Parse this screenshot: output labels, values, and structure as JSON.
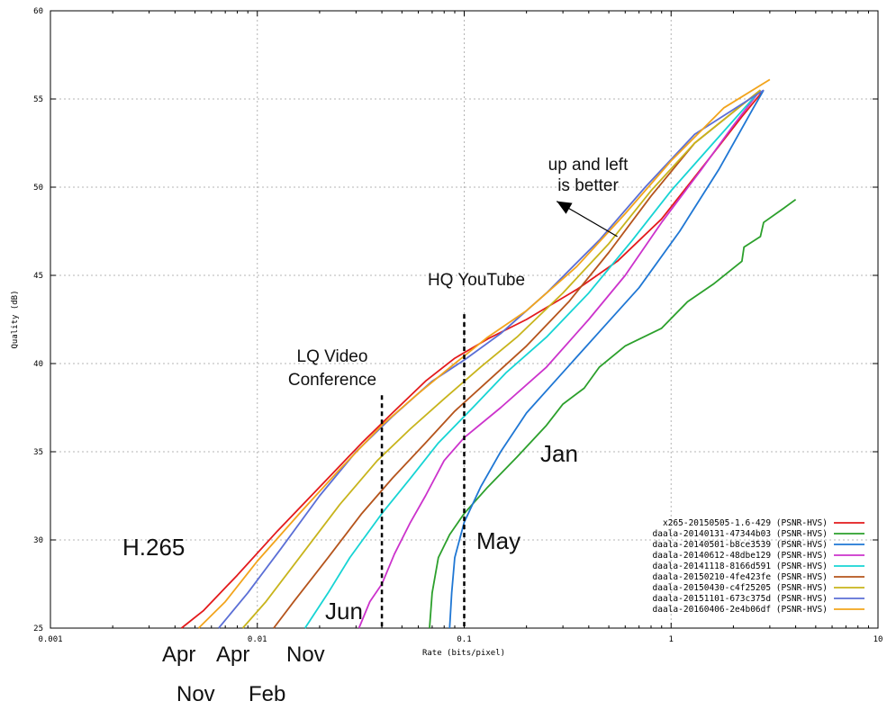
{
  "chart_data": {
    "type": "line",
    "xlabel": "Rate (bits/pixel)",
    "ylabel": "Quality (dB)",
    "x_scale": "log",
    "xlim": [
      0.001,
      10
    ],
    "ylim": [
      25,
      60
    ],
    "x_ticks": [
      "0.001",
      "0.01",
      "0.1",
      "1",
      "10"
    ],
    "y_ticks": [
      "25",
      "30",
      "35",
      "40",
      "45",
      "50",
      "55",
      "60"
    ],
    "grid": true,
    "legend_position": "bottom-right",
    "series": [
      {
        "name": "x265-20150505-1.6-429 (PSNR-HVS)",
        "color": "#e31a1c",
        "points": [
          [
            0.0043,
            25
          ],
          [
            0.0055,
            26
          ],
          [
            0.008,
            28
          ],
          [
            0.0125,
            30.5
          ],
          [
            0.02,
            33
          ],
          [
            0.032,
            35.5
          ],
          [
            0.045,
            37.2
          ],
          [
            0.065,
            39
          ],
          [
            0.09,
            40.3
          ],
          [
            0.13,
            41.4
          ],
          [
            0.2,
            42.5
          ],
          [
            0.35,
            44.2
          ],
          [
            0.55,
            45.8
          ],
          [
            0.9,
            48.2
          ],
          [
            1.5,
            51.5
          ],
          [
            2.2,
            54
          ],
          [
            2.8,
            55.5
          ]
        ]
      },
      {
        "name": "daala-20140131-47344b03 (PSNR-HVS)",
        "color": "#2ca02c",
        "points": [
          [
            0.068,
            25
          ],
          [
            0.07,
            27
          ],
          [
            0.075,
            29
          ],
          [
            0.085,
            30.3
          ],
          [
            0.1,
            31.5
          ],
          [
            0.13,
            33
          ],
          [
            0.18,
            34.7
          ],
          [
            0.25,
            36.5
          ],
          [
            0.3,
            37.7
          ],
          [
            0.38,
            38.6
          ],
          [
            0.45,
            39.8
          ],
          [
            0.6,
            41
          ],
          [
            0.9,
            42
          ],
          [
            1.2,
            43.5
          ],
          [
            1.6,
            44.5
          ],
          [
            2.2,
            45.8
          ],
          [
            2.25,
            46.6
          ],
          [
            2.7,
            47.2
          ],
          [
            2.8,
            48
          ],
          [
            3.5,
            48.8
          ],
          [
            4,
            49.3
          ]
        ]
      },
      {
        "name": "daala-20140501-b8ce3539 (PSNR-HVS)",
        "color": "#1f77d4",
        "points": [
          [
            0.085,
            25
          ],
          [
            0.087,
            27
          ],
          [
            0.09,
            29
          ],
          [
            0.1,
            31
          ],
          [
            0.12,
            33
          ],
          [
            0.15,
            35
          ],
          [
            0.2,
            37.2
          ],
          [
            0.3,
            39.5
          ],
          [
            0.45,
            41.8
          ],
          [
            0.7,
            44.3
          ],
          [
            1.1,
            47.5
          ],
          [
            1.7,
            51
          ],
          [
            2.5,
            54.5
          ],
          [
            2.8,
            55.5
          ]
        ]
      },
      {
        "name": "daala-20140612-48dbe129 (PSNR-HVS)",
        "color": "#cc33cc",
        "points": [
          [
            0.031,
            25
          ],
          [
            0.035,
            26.5
          ],
          [
            0.04,
            27.5
          ],
          [
            0.046,
            29.2
          ],
          [
            0.055,
            31
          ],
          [
            0.065,
            32.5
          ],
          [
            0.08,
            34.5
          ],
          [
            0.1,
            35.8
          ],
          [
            0.15,
            37.5
          ],
          [
            0.25,
            39.8
          ],
          [
            0.4,
            42.5
          ],
          [
            0.6,
            45
          ],
          [
            0.9,
            48
          ],
          [
            1.4,
            51
          ],
          [
            2,
            53.5
          ],
          [
            2.7,
            55.5
          ]
        ]
      },
      {
        "name": "daala-20141118-8166d591 (PSNR-HVS)",
        "color": "#17d4d4",
        "points": [
          [
            0.017,
            25
          ],
          [
            0.022,
            27
          ],
          [
            0.028,
            29
          ],
          [
            0.04,
            31.5
          ],
          [
            0.055,
            33.5
          ],
          [
            0.075,
            35.5
          ],
          [
            0.11,
            37.5
          ],
          [
            0.16,
            39.5
          ],
          [
            0.25,
            41.5
          ],
          [
            0.4,
            44
          ],
          [
            0.65,
            47
          ],
          [
            1,
            49.8
          ],
          [
            1.6,
            52.5
          ],
          [
            2.7,
            55.5
          ]
        ]
      },
      {
        "name": "daala-20150210-4fe423fe (PSNR-HVS)",
        "color": "#b5541c",
        "points": [
          [
            0.012,
            25
          ],
          [
            0.015,
            26.5
          ],
          [
            0.022,
            29
          ],
          [
            0.032,
            31.5
          ],
          [
            0.045,
            33.5
          ],
          [
            0.065,
            35.5
          ],
          [
            0.09,
            37.3
          ],
          [
            0.13,
            39
          ],
          [
            0.2,
            41
          ],
          [
            0.32,
            43.5
          ],
          [
            0.5,
            46.3
          ],
          [
            0.8,
            49.5
          ],
          [
            1.3,
            52.5
          ],
          [
            2.7,
            55.5
          ]
        ]
      },
      {
        "name": "daala-20150430-c4f25205 (PSNR-HVS)",
        "color": "#c8b41c",
        "points": [
          [
            0.0085,
            25
          ],
          [
            0.011,
            26.5
          ],
          [
            0.016,
            29
          ],
          [
            0.025,
            32
          ],
          [
            0.038,
            34.5
          ],
          [
            0.055,
            36.3
          ],
          [
            0.08,
            38
          ],
          [
            0.12,
            39.8
          ],
          [
            0.18,
            41.5
          ],
          [
            0.3,
            44
          ],
          [
            0.5,
            46.8
          ],
          [
            0.8,
            49.8
          ],
          [
            1.3,
            52.5
          ],
          [
            2.7,
            55.5
          ]
        ]
      },
      {
        "name": "daala-20151101-673c375d (PSNR-HVS)",
        "color": "#5b6fd6",
        "points": [
          [
            0.0065,
            25
          ],
          [
            0.009,
            27
          ],
          [
            0.013,
            29.5
          ],
          [
            0.02,
            32.5
          ],
          [
            0.03,
            35
          ],
          [
            0.045,
            37
          ],
          [
            0.07,
            39
          ],
          [
            0.1,
            40.2
          ],
          [
            0.15,
            41.7
          ],
          [
            0.25,
            44
          ],
          [
            0.45,
            47
          ],
          [
            0.75,
            50
          ],
          [
            1.3,
            53
          ],
          [
            2.8,
            55.5
          ]
        ]
      },
      {
        "name": "daala-20160406-2e4b06df (PSNR-HVS)",
        "color": "#f2a41c",
        "points": [
          [
            0.0052,
            25
          ],
          [
            0.007,
            26.5
          ],
          [
            0.01,
            28.8
          ],
          [
            0.016,
            31.5
          ],
          [
            0.025,
            34
          ],
          [
            0.04,
            36.5
          ],
          [
            0.06,
            38.3
          ],
          [
            0.09,
            40
          ],
          [
            0.13,
            41.5
          ],
          [
            0.2,
            43
          ],
          [
            0.35,
            45.5
          ],
          [
            0.6,
            48.5
          ],
          [
            1,
            51.5
          ],
          [
            1.8,
            54.5
          ],
          [
            3,
            56.1
          ]
        ]
      }
    ],
    "vlines": [
      {
        "x": 0.04,
        "y_from": 25,
        "y_to": 38.2
      },
      {
        "x": 0.1,
        "y_from": 25,
        "y_to": 42.8
      }
    ],
    "annotations": {
      "up_left_line1": "up and left",
      "up_left_line2": "is better",
      "hq": "HQ YouTube",
      "lq_line1": "LQ Video",
      "lq_line2": "Conference",
      "jan": "Jan",
      "may": "May",
      "h265": "H.265",
      "jun": "Jun",
      "apr1": "Apr",
      "apr2": "Apr",
      "nov1": "Nov",
      "nov2": "Nov",
      "feb": "Feb"
    },
    "arrow": {
      "from": [
        0.55,
        47.2
      ],
      "to": [
        0.28,
        49.2
      ]
    }
  }
}
